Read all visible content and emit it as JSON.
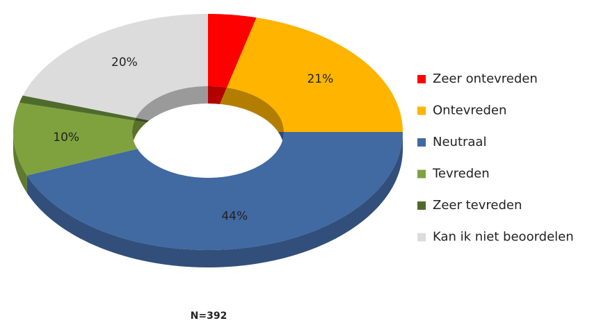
{
  "chart_data": {
    "type": "donut",
    "annotation": "N=392",
    "categories": [
      "Zeer ontevreden",
      "Ontevreden",
      "Neutraal",
      "Tevreden",
      "Zeer tevreden",
      "Kan ik niet beoordelen"
    ],
    "values": [
      4,
      21,
      44,
      10,
      1,
      20
    ],
    "value_labels": [
      null,
      "21%",
      "44%",
      "10%",
      null,
      "20%"
    ],
    "colors": [
      "#ff0000",
      "#ffb400",
      "#4169a2",
      "#7fa23e",
      "#4f6b2c",
      "#dcdcdc"
    ],
    "legend": "right"
  }
}
